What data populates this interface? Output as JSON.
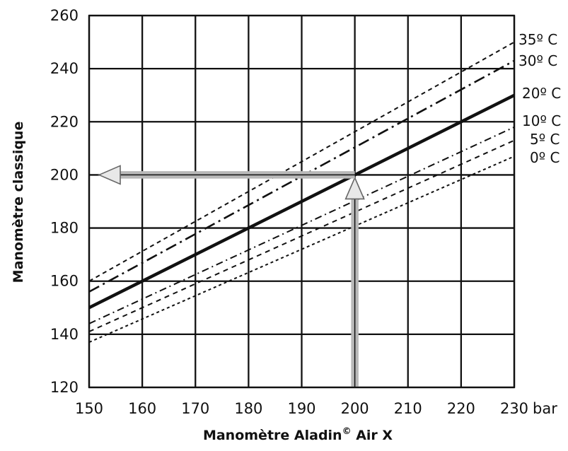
{
  "chart_data": {
    "type": "line",
    "title": "",
    "xlabel": "Manomètre Aladin",
    "xlabel_superscript": "©",
    "xlabel_suffix": " Air X",
    "ylabel": "Manomètre classique",
    "x_unit": "bar",
    "xlim": [
      150,
      230
    ],
    "ylim": [
      120,
      260
    ],
    "x_ticks": [
      150,
      160,
      170,
      180,
      190,
      200,
      210,
      220,
      230
    ],
    "y_ticks": [
      120,
      140,
      160,
      180,
      200,
      220,
      240,
      260
    ],
    "grid": true,
    "series": [
      {
        "name": "35º C",
        "style": "dashed-fine",
        "x": [
          150,
          230
        ],
        "y": [
          160,
          250
        ]
      },
      {
        "name": "30º C",
        "style": "dash-dot",
        "x": [
          150,
          230
        ],
        "y": [
          156,
          243
        ]
      },
      {
        "name": "20º C",
        "style": "solid-bold",
        "x": [
          150,
          230
        ],
        "y": [
          150,
          230
        ]
      },
      {
        "name": "10º C",
        "style": "dash-dot-fine",
        "x": [
          150,
          230
        ],
        "y": [
          144,
          218
        ]
      },
      {
        "name": "5º C",
        "style": "dashed-short",
        "x": [
          150,
          230
        ],
        "y": [
          141,
          213
        ]
      },
      {
        "name": "0º C",
        "style": "dotted-dash",
        "x": [
          150,
          230
        ],
        "y": [
          137,
          207
        ]
      }
    ],
    "annotation": {
      "type": "reading-arrows",
      "from_x": 200,
      "to_y": 200
    }
  }
}
